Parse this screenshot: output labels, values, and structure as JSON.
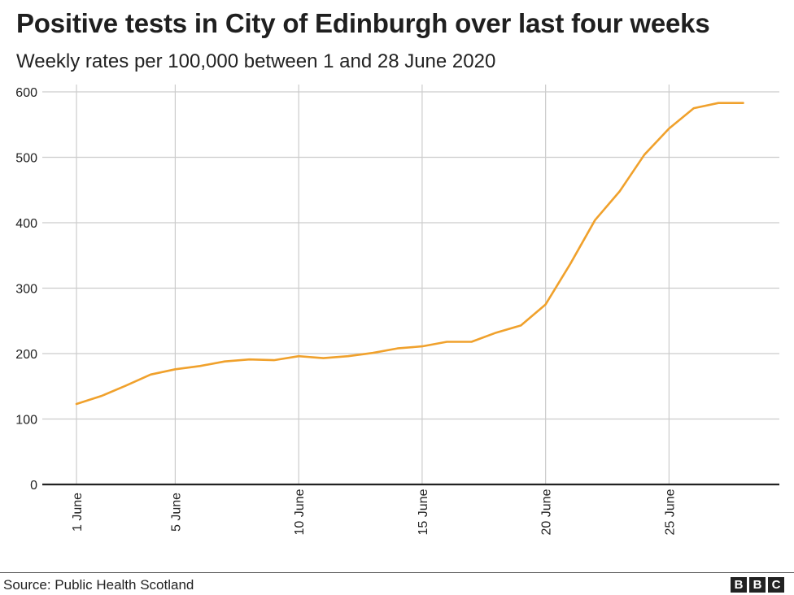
{
  "header": {
    "title": "Positive tests in City of Edinburgh over last four weeks",
    "subtitle": "Weekly rates per 100,000 between 1 and 28 June 2020"
  },
  "footer": {
    "source": "Source: Public Health Scotland",
    "logo_letters": [
      "B",
      "B",
      "C"
    ]
  },
  "colors": {
    "line": "#f0a12c",
    "grid": "#cccccc",
    "baseline": "#222222"
  },
  "chart_data": {
    "type": "line",
    "title": "Positive tests in City of Edinburgh over last four weeks",
    "subtitle": "Weekly rates per 100,000 between 1 and 28 June 2020",
    "xlabel": "",
    "ylabel": "",
    "ylim": [
      0,
      600
    ],
    "y_ticks": [
      0,
      100,
      200,
      300,
      400,
      500,
      600
    ],
    "x_ticks": [
      {
        "day": 1,
        "label": "1 June"
      },
      {
        "day": 5,
        "label": "5 June"
      },
      {
        "day": 10,
        "label": "10 June"
      },
      {
        "day": 15,
        "label": "15 June"
      },
      {
        "day": 20,
        "label": "20 June"
      },
      {
        "day": 25,
        "label": "25 June"
      }
    ],
    "grid": true,
    "legend": "none",
    "series": [
      {
        "x": [
          1,
          2,
          3,
          4,
          5,
          6,
          7,
          8,
          9,
          10,
          11,
          12,
          13,
          14,
          15,
          16,
          17,
          18,
          19,
          20,
          21,
          22,
          23,
          24,
          25,
          26,
          27,
          28
        ],
        "values": [
          123,
          135,
          151,
          168,
          176,
          181,
          188,
          191,
          190,
          196,
          193,
          196,
          201,
          208,
          211,
          218,
          218,
          232,
          243,
          275,
          337,
          404,
          448,
          504,
          544,
          575,
          583,
          583
        ]
      }
    ]
  }
}
